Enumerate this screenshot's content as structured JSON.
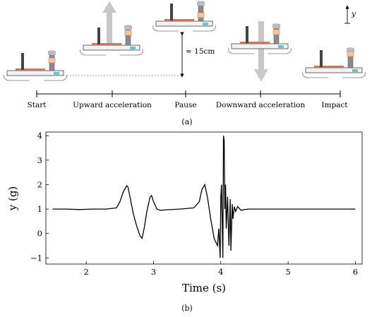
{
  "diagram": {
    "stages": [
      "Start",
      "Upward acceleration",
      "Pause",
      "Downward acceleration",
      "Impact"
    ],
    "height_note": "≈ 15cm",
    "axis_symbol": "y",
    "caption": "(a)"
  },
  "chart_data": {
    "type": "line",
    "xlabel": "Time (s)",
    "ylabel": "y (g)",
    "xlim": [
      1.4,
      6.1
    ],
    "ylim": [
      -1.25,
      4.15
    ],
    "xticks": [
      2,
      3,
      4,
      5,
      6
    ],
    "yticks": [
      -1,
      0,
      1,
      2,
      3,
      4
    ],
    "grid": false,
    "caption": "(b)",
    "series": [
      {
        "x": [
          1.5,
          1.7,
          1.9,
          2.1,
          2.3,
          2.45,
          2.5,
          2.55,
          2.6,
          2.62,
          2.65,
          2.7,
          2.75,
          2.8,
          2.83,
          2.86,
          2.9,
          2.95,
          2.97,
          3.0,
          3.05,
          3.1,
          3.2,
          3.4,
          3.6,
          3.68,
          3.72,
          3.76,
          3.8,
          3.85,
          3.9,
          3.95,
          3.97,
          3.99,
          4.0,
          4.01,
          4.02,
          4.03,
          4.04,
          4.05,
          4.06,
          4.07,
          4.08,
          4.1,
          4.12,
          4.14,
          4.15,
          4.17,
          4.18,
          4.2,
          4.22,
          4.25,
          4.3,
          4.4,
          4.6,
          5.0,
          5.5,
          6.0
        ],
        "y": [
          1.0,
          1.0,
          0.98,
          1.0,
          1.0,
          1.05,
          1.3,
          1.7,
          1.95,
          1.9,
          1.5,
          0.8,
          0.3,
          -0.1,
          -0.2,
          0.2,
          0.9,
          1.5,
          1.55,
          1.3,
          1.0,
          0.95,
          0.97,
          1.0,
          1.05,
          1.3,
          1.8,
          2.0,
          1.5,
          0.6,
          -0.2,
          -0.5,
          0.2,
          -1.0,
          1.5,
          2.0,
          0.5,
          -1.0,
          4.0,
          3.8,
          1.0,
          2.0,
          0.2,
          1.5,
          -0.5,
          1.4,
          -0.7,
          1.2,
          0.6,
          1.1,
          0.9,
          1.1,
          0.95,
          1.0,
          1.0,
          1.0,
          1.0,
          1.0
        ]
      }
    ]
  }
}
